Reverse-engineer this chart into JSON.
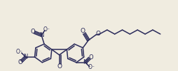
{
  "background_color": "#f0ece0",
  "line_color": "#2a2a5a",
  "line_width": 1.1,
  "figsize": [
    2.55,
    1.02
  ],
  "dpi": 100,
  "xlim": [
    0,
    255
  ],
  "ylim": [
    0,
    102
  ]
}
